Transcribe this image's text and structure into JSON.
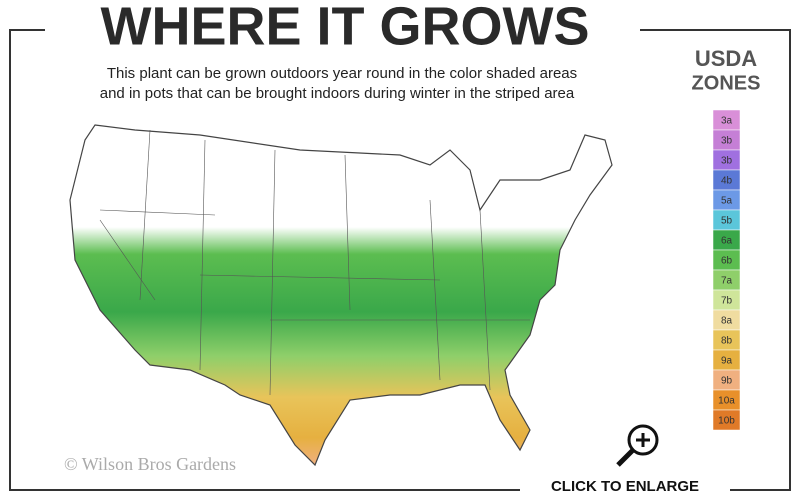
{
  "header": {
    "title": "WHERE IT GROWS",
    "description": [
      "This plant can be grown outdoors year round in the color shaded areas",
      "and in pots that can be brought indoors during winter in the striped area"
    ]
  },
  "legend": {
    "title": [
      "USDA",
      "ZONES"
    ],
    "zones": [
      {
        "label": "3a",
        "color": "#d98fd8"
      },
      {
        "label": "3b",
        "color": "#c57fd6"
      },
      {
        "label": "3b",
        "color": "#a070e0"
      },
      {
        "label": "4b",
        "color": "#5b79d6"
      },
      {
        "label": "5a",
        "color": "#6c99e6"
      },
      {
        "label": "5b",
        "color": "#5bc6da"
      },
      {
        "label": "6a",
        "color": "#3aa84a"
      },
      {
        "label": "6b",
        "color": "#5cbd50"
      },
      {
        "label": "7a",
        "color": "#8fcf6a"
      },
      {
        "label": "7b",
        "color": "#cfe59a"
      },
      {
        "label": "8a",
        "color": "#f0dca0"
      },
      {
        "label": "8b",
        "color": "#e8c45a"
      },
      {
        "label": "9a",
        "color": "#e6b040"
      },
      {
        "label": "9b",
        "color": "#f0b080"
      },
      {
        "label": "10a",
        "color": "#e8902a"
      },
      {
        "label": "10b",
        "color": "#e07a28"
      }
    ]
  },
  "footer": {
    "copyright": "© Wilson Bros Gardens",
    "action": "CLICK TO ENLARGE"
  }
}
